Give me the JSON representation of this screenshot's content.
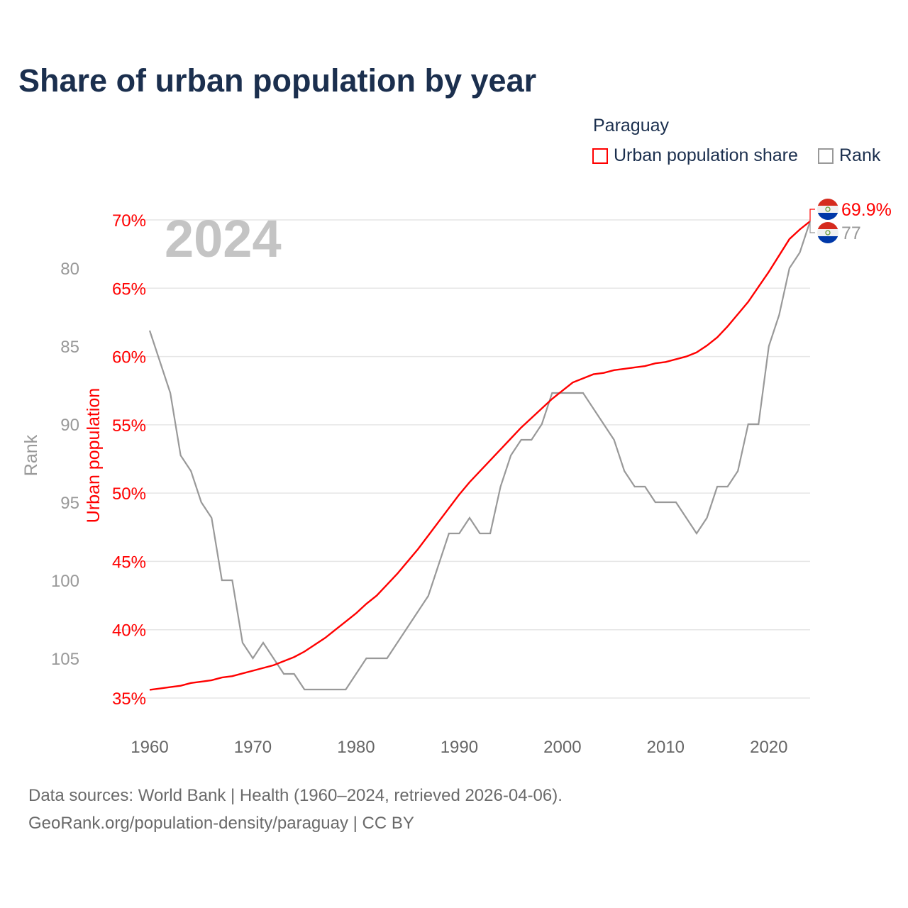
{
  "title": "Share of urban population by year",
  "legend": {
    "title": "Paraguay",
    "items": [
      {
        "label": "Urban population share",
        "color": "#ff0000"
      },
      {
        "label": "Rank",
        "color": "#999999"
      }
    ]
  },
  "footer": {
    "line1": "Data sources: World Bank | Health (1960–2024, retrieved 2026-04-06).",
    "line2": "GeoRank.org/population-density/paraguay | CC BY"
  },
  "chart_data": {
    "type": "line",
    "title": "Share of urban population by year",
    "watermark_year": "2024",
    "x": [
      1960,
      1961,
      1962,
      1963,
      1964,
      1965,
      1966,
      1967,
      1968,
      1969,
      1970,
      1971,
      1972,
      1973,
      1974,
      1975,
      1976,
      1977,
      1978,
      1979,
      1980,
      1981,
      1982,
      1983,
      1984,
      1985,
      1986,
      1987,
      1988,
      1989,
      1990,
      1991,
      1992,
      1993,
      1994,
      1995,
      1996,
      1997,
      1998,
      1999,
      2000,
      2001,
      2002,
      2003,
      2004,
      2005,
      2006,
      2007,
      2008,
      2009,
      2010,
      2011,
      2012,
      2013,
      2014,
      2015,
      2016,
      2017,
      2018,
      2019,
      2020,
      2021,
      2022,
      2023,
      2024
    ],
    "series": [
      {
        "name": "Urban population share",
        "axis": "left",
        "color": "#ff0000",
        "values": [
          35.6,
          35.7,
          35.8,
          35.9,
          36.1,
          36.2,
          36.3,
          36.5,
          36.6,
          36.8,
          37.0,
          37.2,
          37.4,
          37.7,
          38.0,
          38.4,
          38.9,
          39.4,
          40.0,
          40.6,
          41.2,
          41.9,
          42.5,
          43.3,
          44.1,
          45.0,
          45.9,
          46.9,
          47.9,
          48.9,
          49.9,
          50.8,
          51.6,
          52.4,
          53.2,
          54.0,
          54.8,
          55.5,
          56.2,
          56.9,
          57.5,
          58.1,
          58.4,
          58.7,
          58.8,
          59.0,
          59.1,
          59.2,
          59.3,
          59.5,
          59.6,
          59.8,
          60.0,
          60.3,
          60.8,
          61.4,
          62.2,
          63.1,
          64.0,
          65.1,
          66.2,
          67.4,
          68.6,
          69.3,
          69.9
        ],
        "end_label": "69.9%"
      },
      {
        "name": "Rank",
        "axis": "right",
        "color": "#999999",
        "values": [
          84,
          86,
          88,
          92,
          93,
          95,
          96,
          100,
          100,
          104,
          105,
          104,
          105,
          106,
          106,
          107,
          107,
          107,
          107,
          107,
          106,
          105,
          105,
          105,
          104,
          103,
          102,
          101,
          99,
          97,
          97,
          96,
          97,
          97,
          94,
          92,
          91,
          91,
          90,
          88,
          88,
          88,
          88,
          89,
          90,
          91,
          93,
          94,
          94,
          95,
          95,
          95,
          96,
          97,
          96,
          94,
          94,
          93,
          90,
          90,
          85,
          83,
          80,
          79,
          77
        ],
        "end_label": "77"
      }
    ],
    "xlabel": "",
    "ylabel_left": "Urban population",
    "ylabel_rank": "Rank",
    "xticks": [
      1960,
      1970,
      1980,
      1990,
      2000,
      2010,
      2020
    ],
    "yticks_left": [
      "35%",
      "40%",
      "45%",
      "50%",
      "55%",
      "60%",
      "65%",
      "70%"
    ],
    "yticks_left_values": [
      35,
      40,
      45,
      50,
      55,
      60,
      65,
      70
    ],
    "yticks_rank": [
      "80",
      "85",
      "90",
      "95",
      "100",
      "105"
    ],
    "yticks_rank_values": [
      80,
      85,
      90,
      95,
      100,
      105
    ],
    "xlim": [
      1960,
      2024
    ],
    "ylim_left": [
      35,
      70
    ],
    "ylim_rank": [
      77,
      107
    ],
    "grid": true,
    "legend_position": "top-right"
  }
}
